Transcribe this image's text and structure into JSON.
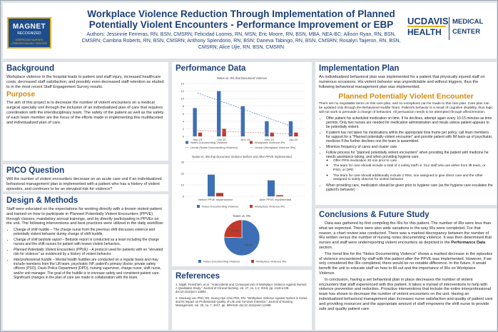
{
  "header": {
    "magnet": {
      "line1": "MAGNET",
      "line2": "RECOGNIZED",
      "line3": "AMERICAN NURSES CREDENTIALING CENTER"
    },
    "title": "Workplace Violence Reduction Through Implementation of Planned Potentially Violent Encounters - Performance Improvement or EBP",
    "authors": "Authors: Jessinnie Ferreras, RN, BSN, CMSRN; Felicidad Loomis, RN, MSN; Eric Moore, RN, BSN, MBA, NEA-BC; Allison Ryan, RN, BSN, CMSRN; Cambria Roberts, RN, BSN, CMSRN; Anthony Spiendorio, RN, BSN; Daneva Tabingo, RN, BSN, CMSRN; Rosalyn Taijeron, RN, BSN, CMSRN; Alice Ujie, RN, BSN, CMSRN",
    "logo": {
      "uc": "UCDAVIS",
      "health": "HEALTH",
      "medical": "MEDICAL",
      "center": "CENTER"
    }
  },
  "background": {
    "heading": "Background",
    "text": "Workplace violence in the hospital leads to patient and staff injury, increased healthcare costs, decreased staff satisfaction, and possibly even decreased staff retention as eluded to in the most recent Staff Engagement Survey results.",
    "purpose_heading": "Purpose",
    "purpose_text": "The aim of this project is to decrease the number of violent encounters on a medical surgical specialty unit through the inclusion of an individualized plan of care that requires coordination with the interdisciplinary team. The safety of the patient as well as the safety of each team member are the focus of the efforts made in implementing this multifaceted and individualized plan of care."
  },
  "pico": {
    "heading": "PICO Question",
    "text": "Will the number of violent encounters decrease on an acute care unit if an individualized behavioral management plan is implemented with a patient who has a history of violent episodes, and continues to be an elevated risk for violence?"
  },
  "design": {
    "heading": "Design & Methods",
    "intro": "Staff were educated on the expectations for working directly with a known violent patient and trained on how to participate in Planned Potentially Violent Encounters (PPVE) through classes, mandatory annual trainings, and by directly participating in PPVEs on the unit. The following interventions and best practices were utilized in the daily workflow:",
    "items": [
      {
        "term": "Change of shift huddle",
        "text": " – The charge nurse from the previous shift discusses violence and potentially violent behavior during change of shift huddle."
      },
      {
        "term": "Change of shift bedside report",
        "text": " – Bedside report is conducted as a team including the charge nurses and the shift nurses for patient with known violent behaviors."
      },
      {
        "term": "Planned Potentially Violent Encounters (PPVE)",
        "text": " – A protocol used for patients with an \"elevated risk for violence\" as evidenced by a history of violent behavior."
      },
      {
        "term": "Interprofessional huddle",
        "text": " – Mental health huddles are conducted on a regular basis and may include members from the Lift team, psychiatric NP, patient's primary doctor, private safety officers (PSO), Davis Police Department (DPD), nursing supervisor, charge nurse, shift nurse, and/or unit manager. The goal of the huddle is to increase safety and consistent patient care. Significant changes in the plan of care are made in collaboration with the team."
      }
    ]
  },
  "performance": {
    "heading": "Performance Data",
    "chart1_title": "Notes vs. IRs that Document Violence",
    "chart2_title": "Notes vs. IRs that Document Violence Before and After PPVE Implemented",
    "chart3_title": "Notes vs. IRs"
  },
  "chart_data": [
    {
      "type": "bar",
      "title": "Notes vs. IRs that Document Violence",
      "categories": [
        "Sep-19",
        "Oct-19",
        "Nov-19",
        "Dec-19",
        "Jan-20"
      ],
      "series": [
        {
          "name": "Notes Documenting Violence",
          "values": [
            7.5,
            12,
            8,
            4,
            4
          ],
          "color": "#3d6fb6"
        },
        {
          "name": "Workplace Violence IRs",
          "values": [
            1,
            2,
            0,
            1,
            1
          ],
          "color": "#c0392b"
        }
      ],
      "trendlines": [
        {
          "name": "Linear (Notes Documenting Violence)",
          "start": 11.5,
          "end": 2.5,
          "color": "#5b88c9"
        },
        {
          "name": "Linear (Workplace Violence IRs)",
          "start": 1.6,
          "end": 0.6,
          "color": "#d98080"
        }
      ],
      "ylim": [
        0,
        14
      ]
    },
    {
      "type": "bar",
      "title": "Notes vs. IRs that Document Violence Before and After PPVE Implemented",
      "categories": [
        "Before PPVE Implemented",
        "After PPVE Implemented"
      ],
      "series": [
        {
          "name": "Notes Documenting Violence",
          "values": [
            19,
            14
          ],
          "color": "#3d6fb6"
        },
        {
          "name": "Workplace Violence IRs",
          "values": [
            3,
            1
          ],
          "color": "#c0392b"
        }
      ],
      "ylim": [
        0,
        30
      ]
    },
    {
      "type": "pie",
      "title": "Notes vs. IRs",
      "slices": [
        {
          "name": "Notes Documenting Violence",
          "value": 75.6,
          "label": "75.6%",
          "color": "#3d6fb6"
        },
        {
          "name": "Workplace Violence IRs",
          "value": 24.4,
          "label": "24.4%",
          "color": "#c0392b"
        }
      ]
    }
  ],
  "implementation": {
    "heading": "Implementation Plan",
    "text": "An individualized behavioral plan was implemented for a patient that physically injured staff on numerous occasions. His violent behavior was unpredictable and without triggers, thus the following behavioral management plan was implemented.",
    "ppve_heading": "Planned Potentially Violent Encounter",
    "ppve_text": "There are no negotiable items on this care plan, and no exceptions can be made to this care plan. Care plan can be updated only through the Behavioral Huddle Team. Patient's behavior is a result of cognitive disability, thus logic will not work to persuade a change of behaviors. All persuasion needs to be attempted through affect/emotion.",
    "bullets": [
      "Offer patient his scheduled medication on time. If he declines, attempt again every 10-15 minutes as time permits. Only two nurses are needed for medication administration and meals unless patient appears to be potentially violent.",
      "If patient has not taken his medications within the appropriate time frame per policy, call team members for support for a \"Planned potentially violent encounter\" and provide patient with IM back-up of psychiatric medicine if the further declines one the team is assembled.",
      "Minimize frequency of cares and cluster care",
      "Follow process for \"planned potentially violent encounters\" when providing the patient with medicine he needs assistance taking, and when providing hygiene care."
    ],
    "sub_bullets": [
      "Offer PRN medication 30 min prior to care",
      "The team for care should include a total of 4 safety staff i.e. four staff who are either from lift team, or PSO, or DPD",
      "The team for care should additionally include 2 RNs, one assigned to give direct care and the other assigned to solely observe for violent behavior",
      "When providing care, medication should be given prior to hygiene care (as the hygiene care escalates the patient's behavior)"
    ]
  },
  "conclusions": {
    "heading": "Conclusions & Future Study",
    "p1_before": "Data was gathered by first compiling the IRs for this patient. The number of IRs were less than what we expected. There were also wide variations in the way IRs were completed. For that reason, a chart review was conducted. There was a marked discrepancy between the number of IRs written versus the number of nursing notes documenting violence. It was then determined that nurses and staff were underreporting violent encounters as depicted in the ",
    "p1_bold": "Performance Data",
    "p1_after": " section.",
    "p2": "The trend line for the \"Notes Documenting Violence\" shows a marked decrease in the episodes of violence encountered by staff with this patient after the PPVE was implemented. However, if we only considered the IRs completed, there would be no notable difference. In the future, it would benefit the unit to educate staff on how to fill out and the importance of IRs on Workplace Violence.",
    "p3": "In conclusion, having a set behavioral plan in place decreases the number of violent encounters that staff experienced with this patient. It takes a myriad of interventions to help with violence prevention and reduction. Proactive interventions that include the entire interprofessional team has shown to decrease the number of violent encounters on the unit. Having an individualized behavioral management plan increases nurse satisfaction and quality of patient care and providing resources and the appropriate amount of staff empowers the shift nurse to provide safe and quality patient care."
  },
  "references": {
    "heading": "References",
    "items": [
      "1.  Najafi, Fereshteh, et al. \"Antecedents and Consequences of Workplace Violence Against Nurses: A Qualitative Study.\" Journal of Clinical Nursing, vol. 27, no. 1-2, 2018, pp. e116-e128. doi:10.1111/jocn.13884.",
      "2.  Hoesung Lee PhD, RN, Seung Hye Choi PhD, RN. \"Workplace Violence Against Nurses in Korea and Its Impact on Professional Quality of Life and Turnover Intention.\" Journal of Nursing Management, vol. 25, no. 7, 2017, pp. 508-518. doi:10.1111/jonm.12488."
    ]
  }
}
